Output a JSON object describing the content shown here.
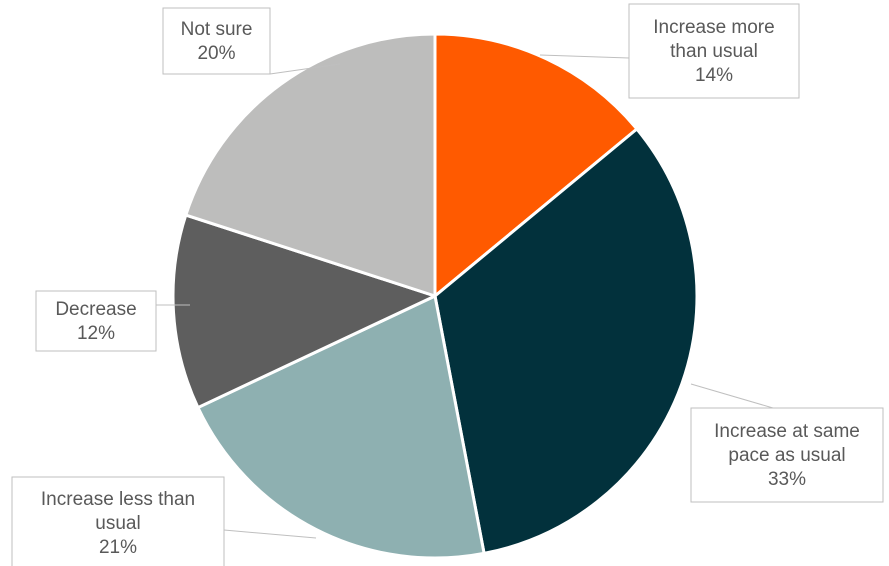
{
  "chart_data": {
    "type": "pie",
    "title": "",
    "legend": "none",
    "slices": [
      {
        "category_lines": [
          "Increase more",
          "than usual"
        ],
        "value": 14,
        "value_label": "14%",
        "color": "#ff5a00"
      },
      {
        "category_lines": [
          "Increase at same",
          "pace as usual"
        ],
        "value": 33,
        "value_label": "33%",
        "color": "#02313c"
      },
      {
        "category_lines": [
          "Increase less than",
          "usual"
        ],
        "value": 21,
        "value_label": "21%",
        "color": "#8eb0b1"
      },
      {
        "category_lines": [
          "Decrease"
        ],
        "value": 12,
        "value_label": "12%",
        "color": "#5e5e5e"
      },
      {
        "category_lines": [
          "Not sure"
        ],
        "value": 20,
        "value_label": "20%",
        "color": "#bdbdbc"
      }
    ]
  }
}
